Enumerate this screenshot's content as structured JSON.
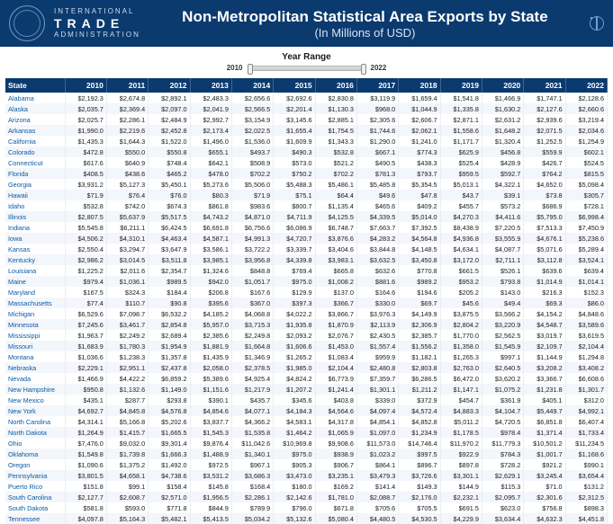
{
  "header": {
    "org_line1": "INTERNATIONAL",
    "org_trade": "TRADE",
    "org_line3": "ADMINISTRATION",
    "title": "Non-Metropolitan Statistical Area Exports by State",
    "subtitle": "(In Millions of USD)"
  },
  "year_range": {
    "label": "Year Range",
    "min": "2010",
    "max": "2022"
  },
  "columns": [
    "State",
    "2010",
    "2011",
    "2012",
    "2013",
    "2014",
    "2015",
    "2016",
    "2017",
    "2018",
    "2019",
    "2020",
    "2021",
    "2022"
  ],
  "rows": [
    [
      "Alabama",
      "$2,192.3",
      "$2,674.8",
      "$2,892.1",
      "$2,483.3",
      "$2,656.6",
      "$2,692.6",
      "$2,830.8",
      "$3,119.9",
      "$1,659.4",
      "$1,541.8",
      "$1,466.9",
      "$1,747.1",
      "$2,128.6"
    ],
    [
      "Alaska",
      "$2,035.7",
      "$2,369.4",
      "$2,097.0",
      "$2,041.9",
      "$2,566.5",
      "$2,201.4",
      "$1,130.3",
      "$968.0",
      "$1,044.9",
      "$1,335.8",
      "$1,630.2",
      "$2,127.6",
      "$2,660.6"
    ],
    [
      "Arizona",
      "$2,025.7",
      "$2,286.1",
      "$2,484.9",
      "$2,992.7",
      "$3,154.9",
      "$3,145.6",
      "$2,885.1",
      "$2,305.6",
      "$2,606.7",
      "$2,871.1",
      "$2,631.2",
      "$2,939.6",
      "$3,219.4"
    ],
    [
      "Arkansas",
      "$1,990.0",
      "$2,219.6",
      "$2,452.8",
      "$2,173.4",
      "$2,022.5",
      "$1,655.4",
      "$1,754.5",
      "$1,744.6",
      "$2,062.1",
      "$1,558.6",
      "$1,648.2",
      "$2,071.5",
      "$2,034.6"
    ],
    [
      "California",
      "$1,435.3",
      "$1,644.3",
      "$1,522.0",
      "$1,496.0",
      "$1,536.0",
      "$1,609.9",
      "$1,343.3",
      "$1,290.0",
      "$1,241.0",
      "$1,171.7",
      "$1,320.4",
      "$1,252.5",
      "$1,254.9"
    ],
    [
      "Colorado",
      "$472.8",
      "$550.0",
      "$550.8",
      "$655.1",
      "$493.7",
      "$490.3",
      "$532.8",
      "$667.1",
      "$774.3",
      "$625.9",
      "$456.8",
      "$559.9",
      "$602.1"
    ],
    [
      "Connecticut",
      "$617.6",
      "$640.9",
      "$748.4",
      "$642.1",
      "$508.9",
      "$573.0",
      "$521.2",
      "$490.5",
      "$438.3",
      "$525.4",
      "$428.9",
      "$426.7",
      "$524.5"
    ],
    [
      "Florida",
      "$408.5",
      "$438.6",
      "$465.2",
      "$478.0",
      "$702.2",
      "$750.2",
      "$702.2",
      "$781.3",
      "$793.7",
      "$959.5",
      "$592.7",
      "$764.2",
      "$815.5"
    ],
    [
      "Georgia",
      "$3,931.2",
      "$5,127.3",
      "$5,450.1",
      "$5,273.6",
      "$5,506.0",
      "$5,488.3",
      "$5,486.1",
      "$5,485.8",
      "$5,354.5",
      "$5,013.1",
      "$4,322.1",
      "$4,652.0",
      "$5,098.4"
    ],
    [
      "Hawaii",
      "$71.9",
      "$76.4",
      "$76.0",
      "$80.3",
      "$71.9",
      "$75.1",
      "$64.4",
      "$49.6",
      "$47.8",
      "$43.7",
      "$39.1",
      "$73.8",
      "$305.7"
    ],
    [
      "Idaho",
      "$532.8",
      "$742.0",
      "$674.3",
      "$861.8",
      "$983.6",
      "$800.7",
      "$1,135.4",
      "$465.6",
      "$409.2",
      "$455.7",
      "$573.2",
      "$686.9",
      "$728.1"
    ],
    [
      "Illinois",
      "$2,807.5",
      "$5,637.9",
      "$5,517.5",
      "$4,743.2",
      "$4,871.0",
      "$4,711.9",
      "$4,125.5",
      "$4,339.5",
      "$5,014.0",
      "$4,270.3",
      "$4,411.6",
      "$5,795.0",
      "$6,998.4"
    ],
    [
      "Indiana",
      "$5,545.8",
      "$6,211.1",
      "$6,424.5",
      "$6,691.8",
      "$6,756.6",
      "$6,086.9",
      "$6,748.7",
      "$7,663.7",
      "$7,392.5",
      "$8,438.9",
      "$7,220.5",
      "$7,513.3",
      "$7,450.9"
    ],
    [
      "Iowa",
      "$4,506.2",
      "$4,310.1",
      "$4,463.4",
      "$4,587.1",
      "$4,991.3",
      "$4,720.7",
      "$3,876.6",
      "$4,283.2",
      "$4,564.8",
      "$4,936.8",
      "$3,555.9",
      "$4,676.1",
      "$5,238.6"
    ],
    [
      "Kansas",
      "$2,550.4",
      "$3,294.7",
      "$3,647.9",
      "$3,586.1",
      "$3,722.2",
      "$3,339.7",
      "$3,404.6",
      "$3,844.8",
      "$4,148.5",
      "$4,634.1",
      "$4,087.7",
      "$5,071.6",
      "$5,289.4"
    ],
    [
      "Kentucky",
      "$2,986.2",
      "$3,014.5",
      "$3,511.8",
      "$3,985.1",
      "$3,956.8",
      "$4,339.8",
      "$3,983.1",
      "$3,632.5",
      "$3,450.8",
      "$3,172.0",
      "$2,711.1",
      "$3,112.8",
      "$3,524.1"
    ],
    [
      "Louisiana",
      "$1,225.2",
      "$2,011.6",
      "$2,354.7",
      "$1,324.6",
      "$848.8",
      "$769.4",
      "$665.8",
      "$632.6",
      "$770.8",
      "$661.5",
      "$526.1",
      "$639.6",
      "$639.4"
    ],
    [
      "Maine",
      "$979.4",
      "$1,036.1",
      "$989.5",
      "$942.0",
      "$1,051.7",
      "$975.0",
      "$1,008.2",
      "$881.6",
      "$989.2",
      "$953.2",
      "$793.8",
      "$1,014.9",
      "$1,014.1"
    ],
    [
      "Maryland",
      "$167.5",
      "$324.3",
      "$184.4",
      "$206.8",
      "$167.6",
      "$129.9",
      "$137.0",
      "$164.6",
      "$194.6",
      "$205.2",
      "$143.0",
      "$216.3",
      "$152.3"
    ],
    [
      "Massachusetts",
      "$77.4",
      "$110.7",
      "$90.8",
      "$395.6",
      "$367.0",
      "$397.3",
      "$366.7",
      "$330.0",
      "$69.7",
      "$45.6",
      "$49.4",
      "$69.3",
      "$86.0"
    ],
    [
      "Michigan",
      "$6,529.6",
      "$7,098.7",
      "$6,532.2",
      "$4,185.2",
      "$4,068.8",
      "$4,022.2",
      "$3,866.7",
      "$3,976.3",
      "$4,149.9",
      "$3,875.5",
      "$3,566.2",
      "$4,154.2",
      "$4,848.6"
    ],
    [
      "Minnesota",
      "$7,245.6",
      "$3,461.7",
      "$2,854.8",
      "$5,957.0",
      "$3,715.3",
      "$1,935.8",
      "$1,870.9",
      "$2,113.9",
      "$2,306.9",
      "$2,804.2",
      "$3,220.9",
      "$4,548.7",
      "$3,589.6"
    ],
    [
      "Mississippi",
      "$1,963.7",
      "$2,249.2",
      "$2,689.4",
      "$2,385.6",
      "$2,249.8",
      "$2,093.2",
      "$2,076.7",
      "$2,430.5",
      "$2,385.7",
      "$1,770.0",
      "$2,562.5",
      "$3,019.7",
      "$3,619.5"
    ],
    [
      "Missouri",
      "$1,683.9",
      "$1,780.3",
      "$1,954.9",
      "$1,881.9",
      "$1,664.8",
      "$1,606.6",
      "$1,453.0",
      "$1,557.4",
      "$1,556.2",
      "$1,358.0",
      "$1,545.9",
      "$2,109.7",
      "$2,104.4"
    ],
    [
      "Montana",
      "$1,036.6",
      "$1,238.3",
      "$1,357.8",
      "$1,435.9",
      "$1,346.9",
      "$1,265.2",
      "$1,083.4",
      "$959.9",
      "$1,182.1",
      "$1,265.3",
      "$997.1",
      "$1,144.9",
      "$1,294.8"
    ],
    [
      "Nebraska",
      "$2,229.1",
      "$2,951.1",
      "$2,437.8",
      "$2,058.0",
      "$2,378.5",
      "$1,985.0",
      "$2,104.4",
      "$2,480.8",
      "$2,803.8",
      "$2,763.0",
      "$2,640.5",
      "$3,208.2",
      "$3,408.2"
    ],
    [
      "Nevada",
      "$1,466.9",
      "$4,422.2",
      "$6,859.2",
      "$5,389.6",
      "$4,925.4",
      "$4,824.2",
      "$6,773.9",
      "$7,359.7",
      "$6,286.5",
      "$6,472.0",
      "$3,620.2",
      "$3,366.7",
      "$6,608.6"
    ],
    [
      "New Hampshire",
      "$950.8",
      "$1,132.6",
      "$1,149.0",
      "$1,151.6",
      "$1,217.9",
      "$1,207.2",
      "$1,241.4",
      "$1,301.1",
      "$1,211.2",
      "$1,147.1",
      "$1,075.2",
      "$1,231.8",
      "$1,301.7"
    ],
    [
      "New Mexico",
      "$435.1",
      "$287.7",
      "$293.8",
      "$390.1",
      "$435.7",
      "$345.6",
      "$403.8",
      "$339.0",
      "$372.9",
      "$454.7",
      "$361.9",
      "$405.1",
      "$312.0"
    ],
    [
      "New York",
      "$4,692.7",
      "$4,845.8",
      "$4,576.8",
      "$4,854.6",
      "$4,077.1",
      "$4,184.3",
      "$4,564.6",
      "$4,097.4",
      "$4,572.4",
      "$4,883.3",
      "$4,104.7",
      "$5,449.7",
      "$4,992.1"
    ],
    [
      "North Carolina",
      "$4,314.1",
      "$5,166.8",
      "$5,202.6",
      "$3,837.7",
      "$4,366.2",
      "$4,583.1",
      "$4,317.8",
      "$4,854.1",
      "$4,852.8",
      "$5,011.2",
      "$4,720.5",
      "$6,851.8",
      "$6,407.4"
    ],
    [
      "North Dakota",
      "$1,264.9",
      "$1,415.7",
      "$1,665.5",
      "$1,545.3",
      "$1,535.8",
      "$1,464.2",
      "$1,065.9",
      "$1,097.0",
      "$1,234.9",
      "$1,178.5",
      "$978.4",
      "$1,371.4",
      "$1,733.4"
    ],
    [
      "Ohio",
      "$7,476.0",
      "$9,032.0",
      "$9,301.4",
      "$9,876.4",
      "$11,042.6",
      "$10,969.8",
      "$9,908.6",
      "$11,573.0",
      "$14,746.4",
      "$11,970.2",
      "$11,779.3",
      "$10,501.2",
      "$11,234.5"
    ],
    [
      "Oklahoma",
      "$1,549.8",
      "$1,739.8",
      "$1,666.3",
      "$1,488.9",
      "$1,340.1",
      "$975.0",
      "$938.9",
      "$1,023.2",
      "$997.5",
      "$922.9",
      "$784.3",
      "$1,001.7",
      "$1,168.6"
    ],
    [
      "Oregon",
      "$1,090.6",
      "$1,375.2",
      "$1,492.0",
      "$972.5",
      "$967.1",
      "$905.3",
      "$906.7",
      "$864.1",
      "$896.7",
      "$897.8",
      "$728.2",
      "$921.2",
      "$990.1"
    ],
    [
      "Pennsylvania",
      "$3,801.5",
      "$4,658.1",
      "$4,738.6",
      "$3,531.2",
      "$3,686.3",
      "$3,473.0",
      "$3,235.1",
      "$3,479.3",
      "$3,726.6",
      "$3,301.1",
      "$2,629.1",
      "$3,245.4",
      "$3,654.4"
    ],
    [
      "Puerto Rico",
      "$151.8",
      "$99.1",
      "$158.4",
      "$145.8",
      "$168.4",
      "$180.0",
      "$169.2",
      "$141.4",
      "$149.3",
      "$144.9",
      "$115.3",
      "$71.0",
      "$131.2"
    ],
    [
      "South Carolina",
      "$2,127.7",
      "$2,608.7",
      "$2,571.0",
      "$1,956.5",
      "$2,286.1",
      "$2,142.6",
      "$1,781.0",
      "$2,088.7",
      "$2,176.0",
      "$2,232.1",
      "$2,095.7",
      "$2,301.6",
      "$2,312.5"
    ],
    [
      "South Dakota",
      "$581.8",
      "$593.0",
      "$771.8",
      "$844.9",
      "$789.9",
      "$796.0",
      "$671.8",
      "$705.6",
      "$705.5",
      "$691.5",
      "$623.0",
      "$756.8",
      "$898.3"
    ],
    [
      "Tennessee",
      "$4,097.8",
      "$5,164.3",
      "$5,482.1",
      "$5,413.5",
      "$5,034.2",
      "$5,132.6",
      "$5,080.4",
      "$4,480.5",
      "$4,530.5",
      "$4,229.9",
      "$3,634.4",
      "$4,632.3",
      "$4,451.8"
    ]
  ],
  "colors": {
    "header_bg": "#0b3a6f",
    "row_alt": "#f3f6fa",
    "link": "#0b5aa8"
  }
}
